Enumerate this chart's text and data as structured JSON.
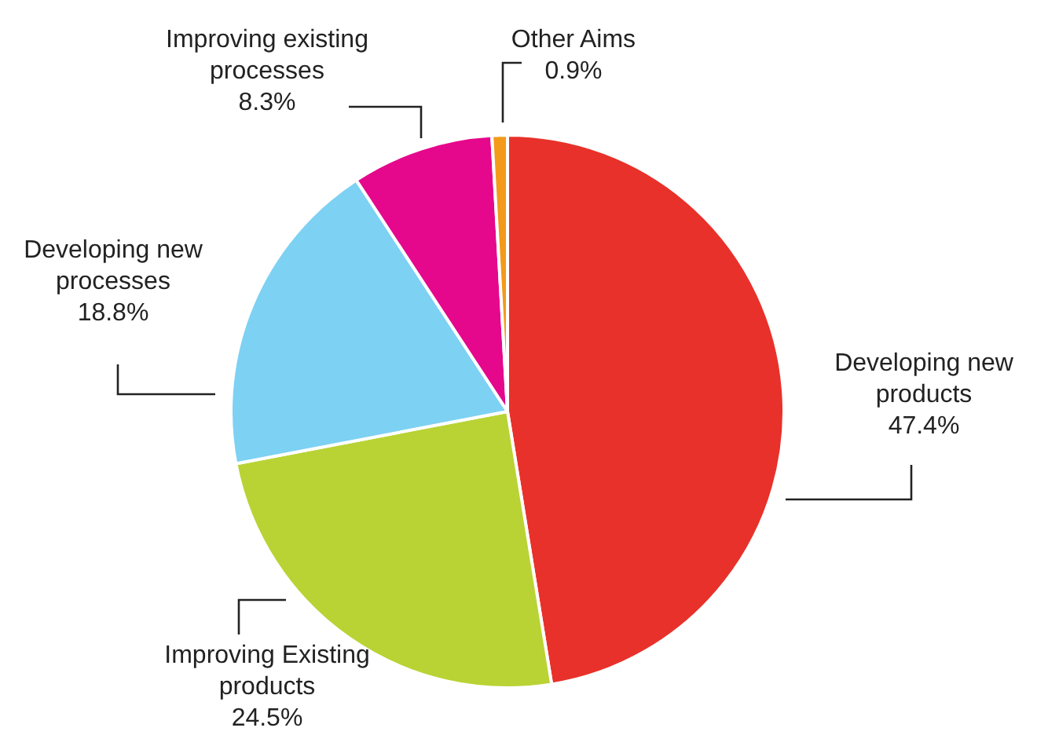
{
  "chart_data": {
    "type": "pie",
    "categories": [
      "Developing new products",
      "Improving Existing products",
      "Developing new processes",
      "Improving existing processes",
      "Other Aims"
    ],
    "values": [
      47.4,
      24.5,
      18.8,
      8.3,
      0.9
    ],
    "value_labels": [
      "47.4%",
      "24.5%",
      "18.8%",
      "8.3%",
      "0.9%"
    ],
    "colors": [
      "#e8312a",
      "#b9d334",
      "#7dd1f3",
      "#e5078c",
      "#f39a1b"
    ],
    "legend": false
  }
}
